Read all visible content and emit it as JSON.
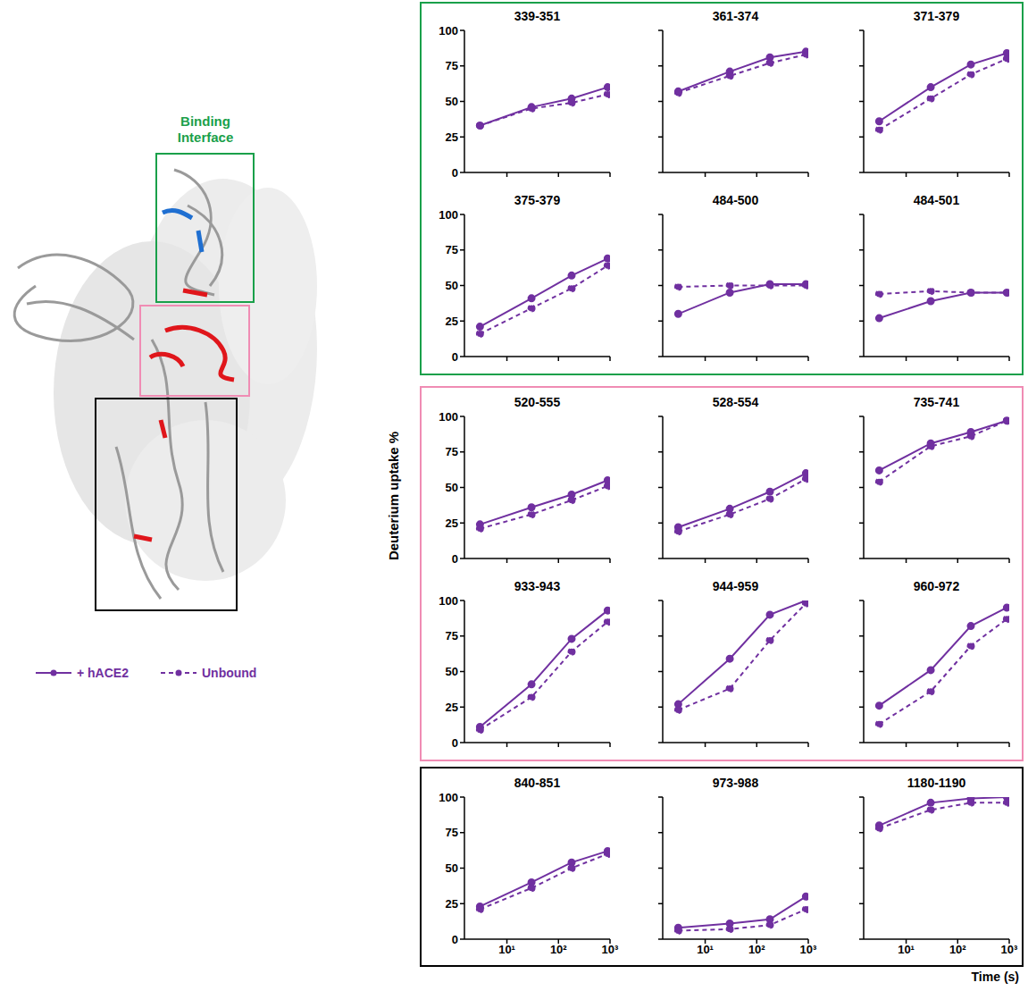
{
  "ylabel": "Deuterium uptake %",
  "xlabel": "Time (s)",
  "annotation": "Binding Interface",
  "chart_data": [
    {
      "type": "line",
      "title": "339-351",
      "x": [
        3,
        30,
        180,
        900
      ],
      "log": "x",
      "xlim": [
        1.5,
        1000
      ],
      "xticks": [
        {
          "value": 10,
          "label": "10¹"
        },
        {
          "value": 100,
          "label": "10²"
        },
        {
          "value": 1000,
          "label": "10³"
        }
      ],
      "ylim": [
        0,
        100
      ],
      "yticks": [
        0,
        25,
        50,
        75,
        100
      ],
      "tick_labels": "y",
      "series": [
        {
          "name": "+ hACE2",
          "color": "#7030a0",
          "line_style": "solid",
          "marker": "circle",
          "values": [
            33,
            46,
            52,
            60
          ]
        },
        {
          "name": "Unbound",
          "color": "#7030a0",
          "line_style": "dashed",
          "marker": "circle",
          "values": [
            33,
            45,
            49,
            55
          ]
        }
      ]
    },
    {
      "type": "line",
      "title": "361-374",
      "x": [
        3,
        30,
        180,
        900
      ],
      "log": "x",
      "xlim": [
        1.5,
        1000
      ],
      "xticks": [
        {
          "value": 10,
          "label": "10¹"
        },
        {
          "value": 100,
          "label": "10²"
        },
        {
          "value": 1000,
          "label": "10³"
        }
      ],
      "ylim": [
        0,
        100
      ],
      "yticks": [
        0,
        25,
        50,
        75,
        100
      ],
      "tick_labels": false,
      "series": [
        {
          "name": "+ hACE2",
          "color": "#7030a0",
          "line_style": "solid",
          "marker": "circle",
          "values": [
            57,
            71,
            81,
            85
          ]
        },
        {
          "name": "Unbound",
          "color": "#7030a0",
          "line_style": "dashed",
          "marker": "circle",
          "values": [
            56,
            68,
            77,
            83
          ]
        }
      ]
    },
    {
      "type": "line",
      "title": "371-379",
      "x": [
        3,
        30,
        180,
        900
      ],
      "log": "x",
      "xlim": [
        1.5,
        1000
      ],
      "xticks": [
        {
          "value": 10,
          "label": "10¹"
        },
        {
          "value": 100,
          "label": "10²"
        },
        {
          "value": 1000,
          "label": "10³"
        }
      ],
      "ylim": [
        0,
        100
      ],
      "yticks": [
        0,
        25,
        50,
        75,
        100
      ],
      "tick_labels": false,
      "series": [
        {
          "name": "+ hACE2",
          "color": "#7030a0",
          "line_style": "solid",
          "marker": "circle",
          "values": [
            36,
            60,
            76,
            84
          ]
        },
        {
          "name": "Unbound",
          "color": "#7030a0",
          "line_style": "dashed",
          "marker": "circle",
          "values": [
            30,
            52,
            69,
            80
          ]
        }
      ]
    },
    {
      "type": "line",
      "title": "375-379",
      "x": [
        3,
        30,
        180,
        900
      ],
      "log": "x",
      "xlim": [
        1.5,
        1000
      ],
      "xticks": [
        {
          "value": 10,
          "label": "10¹"
        },
        {
          "value": 100,
          "label": "10²"
        },
        {
          "value": 1000,
          "label": "10³"
        }
      ],
      "ylim": [
        0,
        100
      ],
      "yticks": [
        0,
        25,
        50,
        75,
        100
      ],
      "tick_labels": "y",
      "series": [
        {
          "name": "+ hACE2",
          "color": "#7030a0",
          "line_style": "solid",
          "marker": "circle",
          "values": [
            21,
            41,
            57,
            69
          ]
        },
        {
          "name": "Unbound",
          "color": "#7030a0",
          "line_style": "dashed",
          "marker": "circle",
          "values": [
            16,
            34,
            48,
            64
          ]
        }
      ]
    },
    {
      "type": "line",
      "title": "484-500",
      "x": [
        3,
        30,
        180,
        900
      ],
      "log": "x",
      "xlim": [
        1.5,
        1000
      ],
      "xticks": [
        {
          "value": 10,
          "label": "10¹"
        },
        {
          "value": 100,
          "label": "10²"
        },
        {
          "value": 1000,
          "label": "10³"
        }
      ],
      "ylim": [
        0,
        100
      ],
      "yticks": [
        0,
        25,
        50,
        75,
        100
      ],
      "tick_labels": false,
      "series": [
        {
          "name": "+ hACE2",
          "color": "#7030a0",
          "line_style": "solid",
          "marker": "circle",
          "values": [
            30,
            45,
            51,
            51
          ]
        },
        {
          "name": "Unbound",
          "color": "#7030a0",
          "line_style": "dashed",
          "marker": "circle",
          "values": [
            49,
            50,
            50,
            50
          ]
        }
      ]
    },
    {
      "type": "line",
      "title": "484-501",
      "x": [
        3,
        30,
        180,
        900
      ],
      "log": "x",
      "xlim": [
        1.5,
        1000
      ],
      "xticks": [
        {
          "value": 10,
          "label": "10¹"
        },
        {
          "value": 100,
          "label": "10²"
        },
        {
          "value": 1000,
          "label": "10³"
        }
      ],
      "ylim": [
        0,
        100
      ],
      "yticks": [
        0,
        25,
        50,
        75,
        100
      ],
      "tick_labels": false,
      "series": [
        {
          "name": "+ hACE2",
          "color": "#7030a0",
          "line_style": "solid",
          "marker": "circle",
          "values": [
            27,
            39,
            45,
            45
          ]
        },
        {
          "name": "Unbound",
          "color": "#7030a0",
          "line_style": "dashed",
          "marker": "circle",
          "values": [
            44,
            46,
            45,
            45
          ]
        }
      ]
    },
    {
      "type": "line",
      "title": "520-555",
      "x": [
        3,
        30,
        180,
        900
      ],
      "log": "x",
      "xlim": [
        1.5,
        1000
      ],
      "xticks": [
        {
          "value": 10,
          "label": "10¹"
        },
        {
          "value": 100,
          "label": "10²"
        },
        {
          "value": 1000,
          "label": "10³"
        }
      ],
      "ylim": [
        0,
        100
      ],
      "yticks": [
        0,
        25,
        50,
        75,
        100
      ],
      "tick_labels": "y",
      "series": [
        {
          "name": "+ hACE2",
          "color": "#7030a0",
          "line_style": "solid",
          "marker": "circle",
          "values": [
            24,
            36,
            45,
            55
          ]
        },
        {
          "name": "Unbound",
          "color": "#7030a0",
          "line_style": "dashed",
          "marker": "circle",
          "values": [
            21,
            31,
            41,
            51
          ]
        }
      ]
    },
    {
      "type": "line",
      "title": "528-554",
      "x": [
        3,
        30,
        180,
        900
      ],
      "log": "x",
      "xlim": [
        1.5,
        1000
      ],
      "xticks": [
        {
          "value": 10,
          "label": "10¹"
        },
        {
          "value": 100,
          "label": "10²"
        },
        {
          "value": 1000,
          "label": "10³"
        }
      ],
      "ylim": [
        0,
        100
      ],
      "yticks": [
        0,
        25,
        50,
        75,
        100
      ],
      "tick_labels": false,
      "series": [
        {
          "name": "+ hACE2",
          "color": "#7030a0",
          "line_style": "solid",
          "marker": "circle",
          "values": [
            22,
            35,
            47,
            60
          ]
        },
        {
          "name": "Unbound",
          "color": "#7030a0",
          "line_style": "dashed",
          "marker": "circle",
          "values": [
            19,
            31,
            42,
            56
          ]
        }
      ]
    },
    {
      "type": "line",
      "title": "735-741",
      "x": [
        3,
        30,
        180,
        900
      ],
      "log": "x",
      "xlim": [
        1.5,
        1000
      ],
      "xticks": [
        {
          "value": 10,
          "label": "10¹"
        },
        {
          "value": 100,
          "label": "10²"
        },
        {
          "value": 1000,
          "label": "10³"
        }
      ],
      "ylim": [
        0,
        100
      ],
      "yticks": [
        0,
        25,
        50,
        75,
        100
      ],
      "tick_labels": false,
      "series": [
        {
          "name": "+ hACE2",
          "color": "#7030a0",
          "line_style": "solid",
          "marker": "circle",
          "values": [
            62,
            81,
            89,
            97
          ]
        },
        {
          "name": "Unbound",
          "color": "#7030a0",
          "line_style": "dashed",
          "marker": "circle",
          "values": [
            54,
            79,
            86,
            97
          ]
        }
      ]
    },
    {
      "type": "line",
      "title": "933-943",
      "x": [
        3,
        30,
        180,
        900
      ],
      "log": "x",
      "xlim": [
        1.5,
        1000
      ],
      "xticks": [
        {
          "value": 10,
          "label": "10¹"
        },
        {
          "value": 100,
          "label": "10²"
        },
        {
          "value": 1000,
          "label": "10³"
        }
      ],
      "ylim": [
        0,
        100
      ],
      "yticks": [
        0,
        25,
        50,
        75,
        100
      ],
      "tick_labels": "y",
      "series": [
        {
          "name": "+ hACE2",
          "color": "#7030a0",
          "line_style": "solid",
          "marker": "circle",
          "values": [
            11,
            41,
            73,
            93
          ]
        },
        {
          "name": "Unbound",
          "color": "#7030a0",
          "line_style": "dashed",
          "marker": "circle",
          "values": [
            9,
            32,
            64,
            85
          ]
        }
      ]
    },
    {
      "type": "line",
      "title": "944-959",
      "x": [
        3,
        30,
        180,
        900
      ],
      "log": "x",
      "xlim": [
        1.5,
        1000
      ],
      "xticks": [
        {
          "value": 10,
          "label": "10¹"
        },
        {
          "value": 100,
          "label": "10²"
        },
        {
          "value": 1000,
          "label": "10³"
        }
      ],
      "ylim": [
        0,
        100
      ],
      "yticks": [
        0,
        25,
        50,
        75,
        100
      ],
      "tick_labels": false,
      "series": [
        {
          "name": "+ hACE2",
          "color": "#7030a0",
          "line_style": "solid",
          "marker": "circle",
          "values": [
            27,
            59,
            90,
            100
          ]
        },
        {
          "name": "Unbound",
          "color": "#7030a0",
          "line_style": "dashed",
          "marker": "circle",
          "values": [
            23,
            38,
            72,
            98
          ]
        }
      ]
    },
    {
      "type": "line",
      "title": "960-972",
      "x": [
        3,
        30,
        180,
        900
      ],
      "log": "x",
      "xlim": [
        1.5,
        1000
      ],
      "xticks": [
        {
          "value": 10,
          "label": "10¹"
        },
        {
          "value": 100,
          "label": "10²"
        },
        {
          "value": 1000,
          "label": "10³"
        }
      ],
      "ylim": [
        0,
        100
      ],
      "yticks": [
        0,
        25,
        50,
        75,
        100
      ],
      "tick_labels": false,
      "series": [
        {
          "name": "+ hACE2",
          "color": "#7030a0",
          "line_style": "solid",
          "marker": "circle",
          "values": [
            26,
            51,
            82,
            95
          ]
        },
        {
          "name": "Unbound",
          "color": "#7030a0",
          "line_style": "dashed",
          "marker": "circle",
          "values": [
            13,
            36,
            68,
            87
          ]
        }
      ]
    },
    {
      "type": "line",
      "title": "840-851",
      "x": [
        3,
        30,
        180,
        900
      ],
      "log": "x",
      "xlim": [
        1.5,
        1000
      ],
      "xticks": [
        {
          "value": 10,
          "label": "10¹"
        },
        {
          "value": 100,
          "label": "10²"
        },
        {
          "value": 1000,
          "label": "10³"
        }
      ],
      "ylim": [
        0,
        100
      ],
      "yticks": [
        0,
        25,
        50,
        75,
        100
      ],
      "tick_labels": true,
      "series": [
        {
          "name": "+ hACE2",
          "color": "#7030a0",
          "line_style": "solid",
          "marker": "circle",
          "values": [
            23,
            40,
            54,
            62
          ]
        },
        {
          "name": "Unbound",
          "color": "#7030a0",
          "line_style": "dashed",
          "marker": "circle",
          "values": [
            21,
            36,
            50,
            60
          ]
        }
      ]
    },
    {
      "type": "line",
      "title": "973-988",
      "x": [
        3,
        30,
        180,
        900
      ],
      "log": "x",
      "xlim": [
        1.5,
        1000
      ],
      "xticks": [
        {
          "value": 10,
          "label": "10¹"
        },
        {
          "value": 100,
          "label": "10²"
        },
        {
          "value": 1000,
          "label": "10³"
        }
      ],
      "ylim": [
        0,
        100
      ],
      "yticks": [
        0,
        25,
        50,
        75,
        100
      ],
      "tick_labels": "x",
      "series": [
        {
          "name": "+ hACE2",
          "color": "#7030a0",
          "line_style": "solid",
          "marker": "circle",
          "values": [
            8,
            11,
            14,
            30
          ]
        },
        {
          "name": "Unbound",
          "color": "#7030a0",
          "line_style": "dashed",
          "marker": "circle",
          "values": [
            6,
            7,
            10,
            21
          ]
        }
      ]
    },
    {
      "type": "line",
      "title": "1180-1190",
      "x": [
        3,
        30,
        180,
        900
      ],
      "log": "x",
      "xlim": [
        1.5,
        1000
      ],
      "xticks": [
        {
          "value": 10,
          "label": "10¹"
        },
        {
          "value": 100,
          "label": "10²"
        },
        {
          "value": 1000,
          "label": "10³"
        }
      ],
      "ylim": [
        0,
        100
      ],
      "yticks": [
        0,
        25,
        50,
        75,
        100
      ],
      "tick_labels": "x",
      "series": [
        {
          "name": "+ hACE2",
          "color": "#7030a0",
          "line_style": "solid",
          "marker": "circle",
          "values": [
            80,
            96,
            99,
            100
          ]
        },
        {
          "name": "Unbound",
          "color": "#7030a0",
          "line_style": "dashed",
          "marker": "circle",
          "values": [
            78,
            91,
            96,
            96
          ]
        }
      ]
    }
  ]
}
